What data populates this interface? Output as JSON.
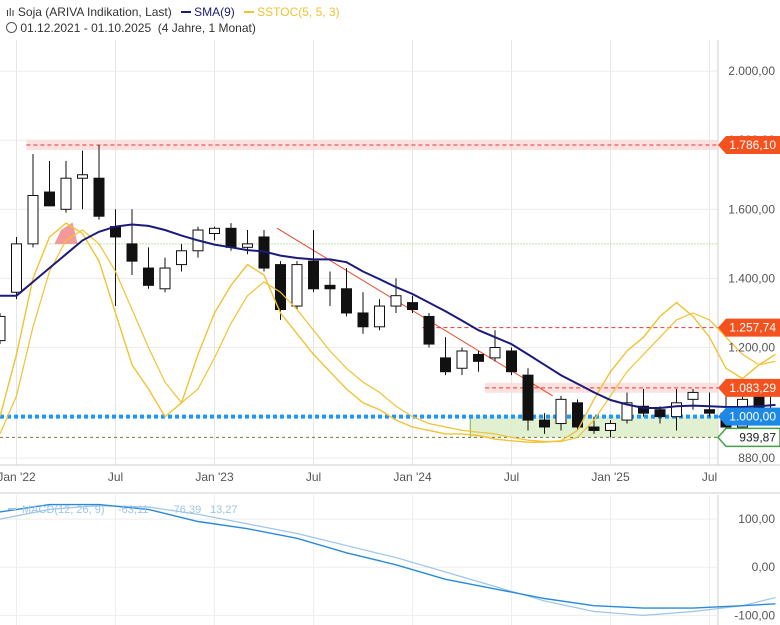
{
  "header": {
    "title": "Soja (ARIVA Indikation, Last)",
    "sma_label": "SMA(9)",
    "sstoc_label": "SSTOC(5, 5, 3)",
    "date_range": "01.12.2021 - 01.10.2025",
    "duration": "(4 Jahre, 1 Monat)"
  },
  "colors": {
    "sma": "#1b1b7a",
    "sstoc": "#f1c232",
    "trendline": "#e8472b",
    "resistance": "#e53935",
    "support": "#2196f3",
    "macd": "#2a8ad8",
    "macd_signal": "#9ec5e8",
    "tag_red": "#f4511e",
    "tag_blue": "#1e88e5",
    "tag_green": "#43a047"
  },
  "chart_data": [
    {
      "type": "candlestick",
      "interval": "monthly",
      "ylim": [
        860,
        2090
      ],
      "y_ticks": [
        "2.000,00",
        "1.800,00",
        "1.600,00",
        "1.400,00",
        "1.200,00",
        "1.000,00",
        "880,00"
      ],
      "y_tick_values": [
        2000,
        1800,
        1600,
        1400,
        1200,
        1000,
        880
      ],
      "x_ticks": [
        "Jan '22",
        "Jul",
        "Jan '23",
        "Jul",
        "Jan '24",
        "Jul",
        "Jan '25",
        "Jul"
      ],
      "x_tick_months": [
        1,
        7,
        13,
        19,
        25,
        31,
        37,
        43
      ],
      "price_tags": [
        {
          "label": "1.786,10",
          "value": 1786.1,
          "color": "red"
        },
        {
          "label": "1.257,74",
          "value": 1257.74,
          "color": "red"
        },
        {
          "label": "1.083,29",
          "value": 1083.29,
          "color": "red"
        },
        {
          "label": "1.000,00",
          "value": 1000.0,
          "color": "blue"
        },
        {
          "label": "939,87",
          "value": 939.87,
          "color": "green"
        }
      ],
      "candles": [
        {
          "m": 0,
          "o": 1220,
          "h": 1300,
          "l": 1210,
          "c": 1290
        },
        {
          "m": 1,
          "o": 1360,
          "h": 1520,
          "l": 1340,
          "c": 1500
        },
        {
          "m": 2,
          "o": 1500,
          "h": 1760,
          "l": 1490,
          "c": 1640
        },
        {
          "m": 3,
          "o": 1650,
          "h": 1740,
          "l": 1610,
          "c": 1610
        },
        {
          "m": 4,
          "o": 1600,
          "h": 1740,
          "l": 1590,
          "c": 1690
        },
        {
          "m": 5,
          "o": 1690,
          "h": 1770,
          "l": 1600,
          "c": 1700
        },
        {
          "m": 6,
          "o": 1690,
          "h": 1786,
          "l": 1570,
          "c": 1580
        },
        {
          "m": 7,
          "o": 1550,
          "h": 1600,
          "l": 1320,
          "c": 1520
        },
        {
          "m": 8,
          "o": 1500,
          "h": 1600,
          "l": 1410,
          "c": 1450
        },
        {
          "m": 9,
          "o": 1430,
          "h": 1490,
          "l": 1370,
          "c": 1380
        },
        {
          "m": 10,
          "o": 1370,
          "h": 1460,
          "l": 1360,
          "c": 1430
        },
        {
          "m": 11,
          "o": 1440,
          "h": 1500,
          "l": 1420,
          "c": 1480
        },
        {
          "m": 12,
          "o": 1480,
          "h": 1550,
          "l": 1460,
          "c": 1540
        },
        {
          "m": 13,
          "o": 1530,
          "h": 1550,
          "l": 1510,
          "c": 1545
        },
        {
          "m": 14,
          "o": 1545,
          "h": 1560,
          "l": 1480,
          "c": 1490
        },
        {
          "m": 15,
          "o": 1490,
          "h": 1540,
          "l": 1470,
          "c": 1500
        },
        {
          "m": 16,
          "o": 1520,
          "h": 1540,
          "l": 1420,
          "c": 1430
        },
        {
          "m": 17,
          "o": 1440,
          "h": 1450,
          "l": 1280,
          "c": 1310
        },
        {
          "m": 18,
          "o": 1320,
          "h": 1450,
          "l": 1310,
          "c": 1440
        },
        {
          "m": 19,
          "o": 1450,
          "h": 1540,
          "l": 1360,
          "c": 1370
        },
        {
          "m": 20,
          "o": 1380,
          "h": 1420,
          "l": 1320,
          "c": 1370
        },
        {
          "m": 21,
          "o": 1370,
          "h": 1430,
          "l": 1290,
          "c": 1300
        },
        {
          "m": 22,
          "o": 1300,
          "h": 1360,
          "l": 1240,
          "c": 1260
        },
        {
          "m": 23,
          "o": 1260,
          "h": 1340,
          "l": 1250,
          "c": 1320
        },
        {
          "m": 24,
          "o": 1320,
          "h": 1400,
          "l": 1300,
          "c": 1350
        },
        {
          "m": 25,
          "o": 1330,
          "h": 1350,
          "l": 1300,
          "c": 1310
        },
        {
          "m": 26,
          "o": 1290,
          "h": 1300,
          "l": 1200,
          "c": 1210
        },
        {
          "m": 27,
          "o": 1170,
          "h": 1230,
          "l": 1120,
          "c": 1130
        },
        {
          "m": 28,
          "o": 1140,
          "h": 1200,
          "l": 1120,
          "c": 1190
        },
        {
          "m": 29,
          "o": 1180,
          "h": 1190,
          "l": 1130,
          "c": 1160
        },
        {
          "m": 30,
          "o": 1170,
          "h": 1250,
          "l": 1160,
          "c": 1200
        },
        {
          "m": 31,
          "o": 1190,
          "h": 1200,
          "l": 1120,
          "c": 1130
        },
        {
          "m": 32,
          "o": 1120,
          "h": 1140,
          "l": 960,
          "c": 990
        },
        {
          "m": 33,
          "o": 990,
          "h": 1010,
          "l": 950,
          "c": 970
        },
        {
          "m": 34,
          "o": 980,
          "h": 1060,
          "l": 960,
          "c": 1050
        },
        {
          "m": 35,
          "o": 1040,
          "h": 1050,
          "l": 960,
          "c": 970
        },
        {
          "m": 36,
          "o": 970,
          "h": 1000,
          "l": 950,
          "c": 960
        },
        {
          "m": 37,
          "o": 960,
          "h": 990,
          "l": 940,
          "c": 980
        },
        {
          "m": 38,
          "o": 990,
          "h": 1070,
          "l": 980,
          "c": 1040
        },
        {
          "m": 39,
          "o": 1030,
          "h": 1080,
          "l": 1000,
          "c": 1010
        },
        {
          "m": 40,
          "o": 1020,
          "h": 1030,
          "l": 980,
          "c": 1000
        },
        {
          "m": 41,
          "o": 1000,
          "h": 1080,
          "l": 960,
          "c": 1040
        },
        {
          "m": 42,
          "o": 1050,
          "h": 1080,
          "l": 1020,
          "c": 1070
        },
        {
          "m": 43,
          "o": 1020,
          "h": 1070,
          "l": 1000,
          "c": 1010
        },
        {
          "m": 44,
          "o": 1010,
          "h": 1080,
          "l": 960,
          "c": 970
        },
        {
          "m": 45,
          "o": 970,
          "h": 1080,
          "l": 960,
          "c": 1050
        },
        {
          "m": 46,
          "o": 1060,
          "h": 1070,
          "l": 990,
          "c": 1000
        },
        {
          "m": 47,
          "o": 990,
          "h": 1083,
          "l": 980,
          "c": 1080
        }
      ],
      "sma": [
        [
          0,
          1350
        ],
        [
          1,
          1350
        ],
        [
          2,
          1390
        ],
        [
          3,
          1430
        ],
        [
          4,
          1470
        ],
        [
          5,
          1510
        ],
        [
          6,
          1535
        ],
        [
          7,
          1550
        ],
        [
          8,
          1556
        ],
        [
          9,
          1552
        ],
        [
          10,
          1540
        ],
        [
          11,
          1524
        ],
        [
          12,
          1510
        ],
        [
          13,
          1498
        ],
        [
          14,
          1490
        ],
        [
          15,
          1482
        ],
        [
          16,
          1478
        ],
        [
          17,
          1466
        ],
        [
          18,
          1459
        ],
        [
          19,
          1455
        ],
        [
          20,
          1455
        ],
        [
          21,
          1447
        ],
        [
          22,
          1420
        ],
        [
          23,
          1398
        ],
        [
          24,
          1375
        ],
        [
          25,
          1355
        ],
        [
          26,
          1330
        ],
        [
          27,
          1305
        ],
        [
          28,
          1278
        ],
        [
          29,
          1250
        ],
        [
          30,
          1230
        ],
        [
          31,
          1210
        ],
        [
          32,
          1180
        ],
        [
          33,
          1150
        ],
        [
          34,
          1120
        ],
        [
          35,
          1095
        ],
        [
          36,
          1070
        ],
        [
          37,
          1048
        ],
        [
          38,
          1035
        ],
        [
          39,
          1025
        ],
        [
          40,
          1025
        ],
        [
          41,
          1030
        ],
        [
          42,
          1032
        ],
        [
          43,
          1030
        ],
        [
          44,
          1028
        ],
        [
          45,
          1028
        ],
        [
          46,
          1030
        ],
        [
          47,
          1034
        ]
      ],
      "sstoc": [
        [
          0,
          1000
        ],
        [
          1,
          1180
        ],
        [
          2,
          1400
        ],
        [
          3,
          1520
        ],
        [
          4,
          1560
        ],
        [
          5,
          1530
        ],
        [
          6,
          1450
        ],
        [
          7,
          1300
        ],
        [
          8,
          1150
        ],
        [
          9,
          1080
        ],
        [
          10,
          1000
        ],
        [
          11,
          1040
        ],
        [
          12,
          1180
        ],
        [
          13,
          1300
        ],
        [
          14,
          1380
        ],
        [
          15,
          1440
        ],
        [
          16,
          1410
        ],
        [
          17,
          1300
        ],
        [
          18,
          1240
        ],
        [
          19,
          1180
        ],
        [
          20,
          1130
        ],
        [
          21,
          1080
        ],
        [
          22,
          1040
        ],
        [
          23,
          1020
        ],
        [
          24,
          990
        ],
        [
          25,
          970
        ],
        [
          26,
          960
        ],
        [
          27,
          950
        ],
        [
          28,
          950
        ],
        [
          29,
          945
        ],
        [
          30,
          935
        ],
        [
          31,
          930
        ],
        [
          32,
          926
        ],
        [
          33,
          926
        ],
        [
          34,
          930
        ],
        [
          35,
          960
        ],
        [
          36,
          1050
        ],
        [
          37,
          1130
        ],
        [
          38,
          1190
        ],
        [
          39,
          1230
        ],
        [
          40,
          1290
        ],
        [
          41,
          1330
        ],
        [
          42,
          1290
        ],
        [
          43,
          1230
        ],
        [
          44,
          1140
        ],
        [
          45,
          1110
        ],
        [
          46,
          1150
        ],
        [
          47,
          1180
        ]
      ],
      "sstoc_signal": [
        [
          0,
          950
        ],
        [
          1,
          1060
        ],
        [
          2,
          1260
        ],
        [
          3,
          1420
        ],
        [
          4,
          1510
        ],
        [
          5,
          1540
        ],
        [
          6,
          1500
        ],
        [
          7,
          1420
        ],
        [
          8,
          1310
        ],
        [
          9,
          1200
        ],
        [
          10,
          1100
        ],
        [
          11,
          1040
        ],
        [
          12,
          1080
        ],
        [
          13,
          1170
        ],
        [
          14,
          1270
        ],
        [
          15,
          1350
        ],
        [
          16,
          1390
        ],
        [
          17,
          1360
        ],
        [
          18,
          1310
        ],
        [
          19,
          1250
        ],
        [
          20,
          1190
        ],
        [
          21,
          1140
        ],
        [
          22,
          1100
        ],
        [
          23,
          1070
        ],
        [
          24,
          1030
        ],
        [
          25,
          1000
        ],
        [
          26,
          980
        ],
        [
          27,
          970
        ],
        [
          28,
          960
        ],
        [
          29,
          955
        ],
        [
          30,
          950
        ],
        [
          31,
          940
        ],
        [
          32,
          932
        ],
        [
          33,
          928
        ],
        [
          34,
          928
        ],
        [
          35,
          940
        ],
        [
          36,
          990
        ],
        [
          37,
          1060
        ],
        [
          38,
          1130
        ],
        [
          39,
          1180
        ],
        [
          40,
          1230
        ],
        [
          41,
          1280
        ],
        [
          42,
          1300
        ],
        [
          43,
          1280
        ],
        [
          44,
          1230
        ],
        [
          45,
          1180
        ],
        [
          46,
          1150
        ],
        [
          47,
          1160
        ]
      ]
    },
    {
      "type": "line",
      "name": "MACD",
      "legend": [
        "MACD(12, 26, 9)",
        "-63,11",
        "-76,39",
        "13,27"
      ],
      "ylim": [
        -120,
        150
      ],
      "y_ticks": [
        "100,00",
        "0,00",
        "-100,00"
      ],
      "y_tick_values": [
        100,
        0,
        -100
      ],
      "macd": [
        [
          0,
          115
        ],
        [
          3,
          130
        ],
        [
          6,
          130
        ],
        [
          9,
          120
        ],
        [
          12,
          95
        ],
        [
          15,
          80
        ],
        [
          18,
          60
        ],
        [
          21,
          30
        ],
        [
          24,
          5
        ],
        [
          27,
          -25
        ],
        [
          30,
          -45
        ],
        [
          33,
          -65
        ],
        [
          36,
          -80
        ],
        [
          39,
          -85
        ],
        [
          42,
          -85
        ],
        [
          45,
          -80
        ],
        [
          47,
          -76
        ]
      ],
      "signal": [
        [
          0,
          100
        ],
        [
          3,
          120
        ],
        [
          6,
          128
        ],
        [
          9,
          125
        ],
        [
          12,
          110
        ],
        [
          15,
          90
        ],
        [
          18,
          70
        ],
        [
          21,
          45
        ],
        [
          24,
          20
        ],
        [
          27,
          -10
        ],
        [
          30,
          -40
        ],
        [
          33,
          -70
        ],
        [
          36,
          -92
        ],
        [
          39,
          -100
        ],
        [
          42,
          -92
        ],
        [
          45,
          -80
        ],
        [
          47,
          -63
        ]
      ]
    }
  ]
}
